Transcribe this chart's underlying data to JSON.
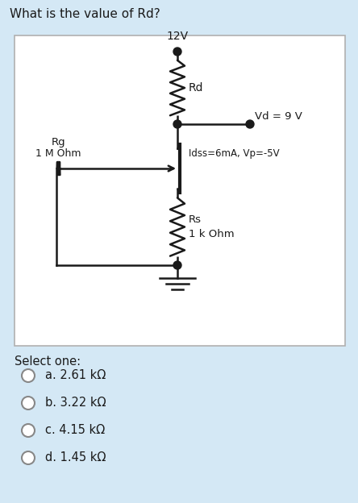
{
  "title": "What is the value of Rd?",
  "background_color": "#d4e8f5",
  "circuit_bg": "#ffffff",
  "supply_voltage": "12V",
  "vd_label": "Vd = 9 V",
  "rd_label": "Rd",
  "rs_label": "Rs\n1 k Ohm",
  "idss_label": "Idss=6mA, Vp=-5V",
  "rg_line1": "Rg",
  "rg_line2": "1 M Ohm",
  "select_one": "Select one:",
  "options": [
    "a. 2.61 kΩ",
    "b. 3.22 kΩ",
    "c. 4.15 kΩ",
    "d. 1.45 kΩ"
  ],
  "line_color": "#1a1a1a",
  "text_color": "#1a1a1a",
  "node_color": "#1a1a1a",
  "box_edge_color": "#b0b0b0",
  "radio_edge_color": "#888888"
}
